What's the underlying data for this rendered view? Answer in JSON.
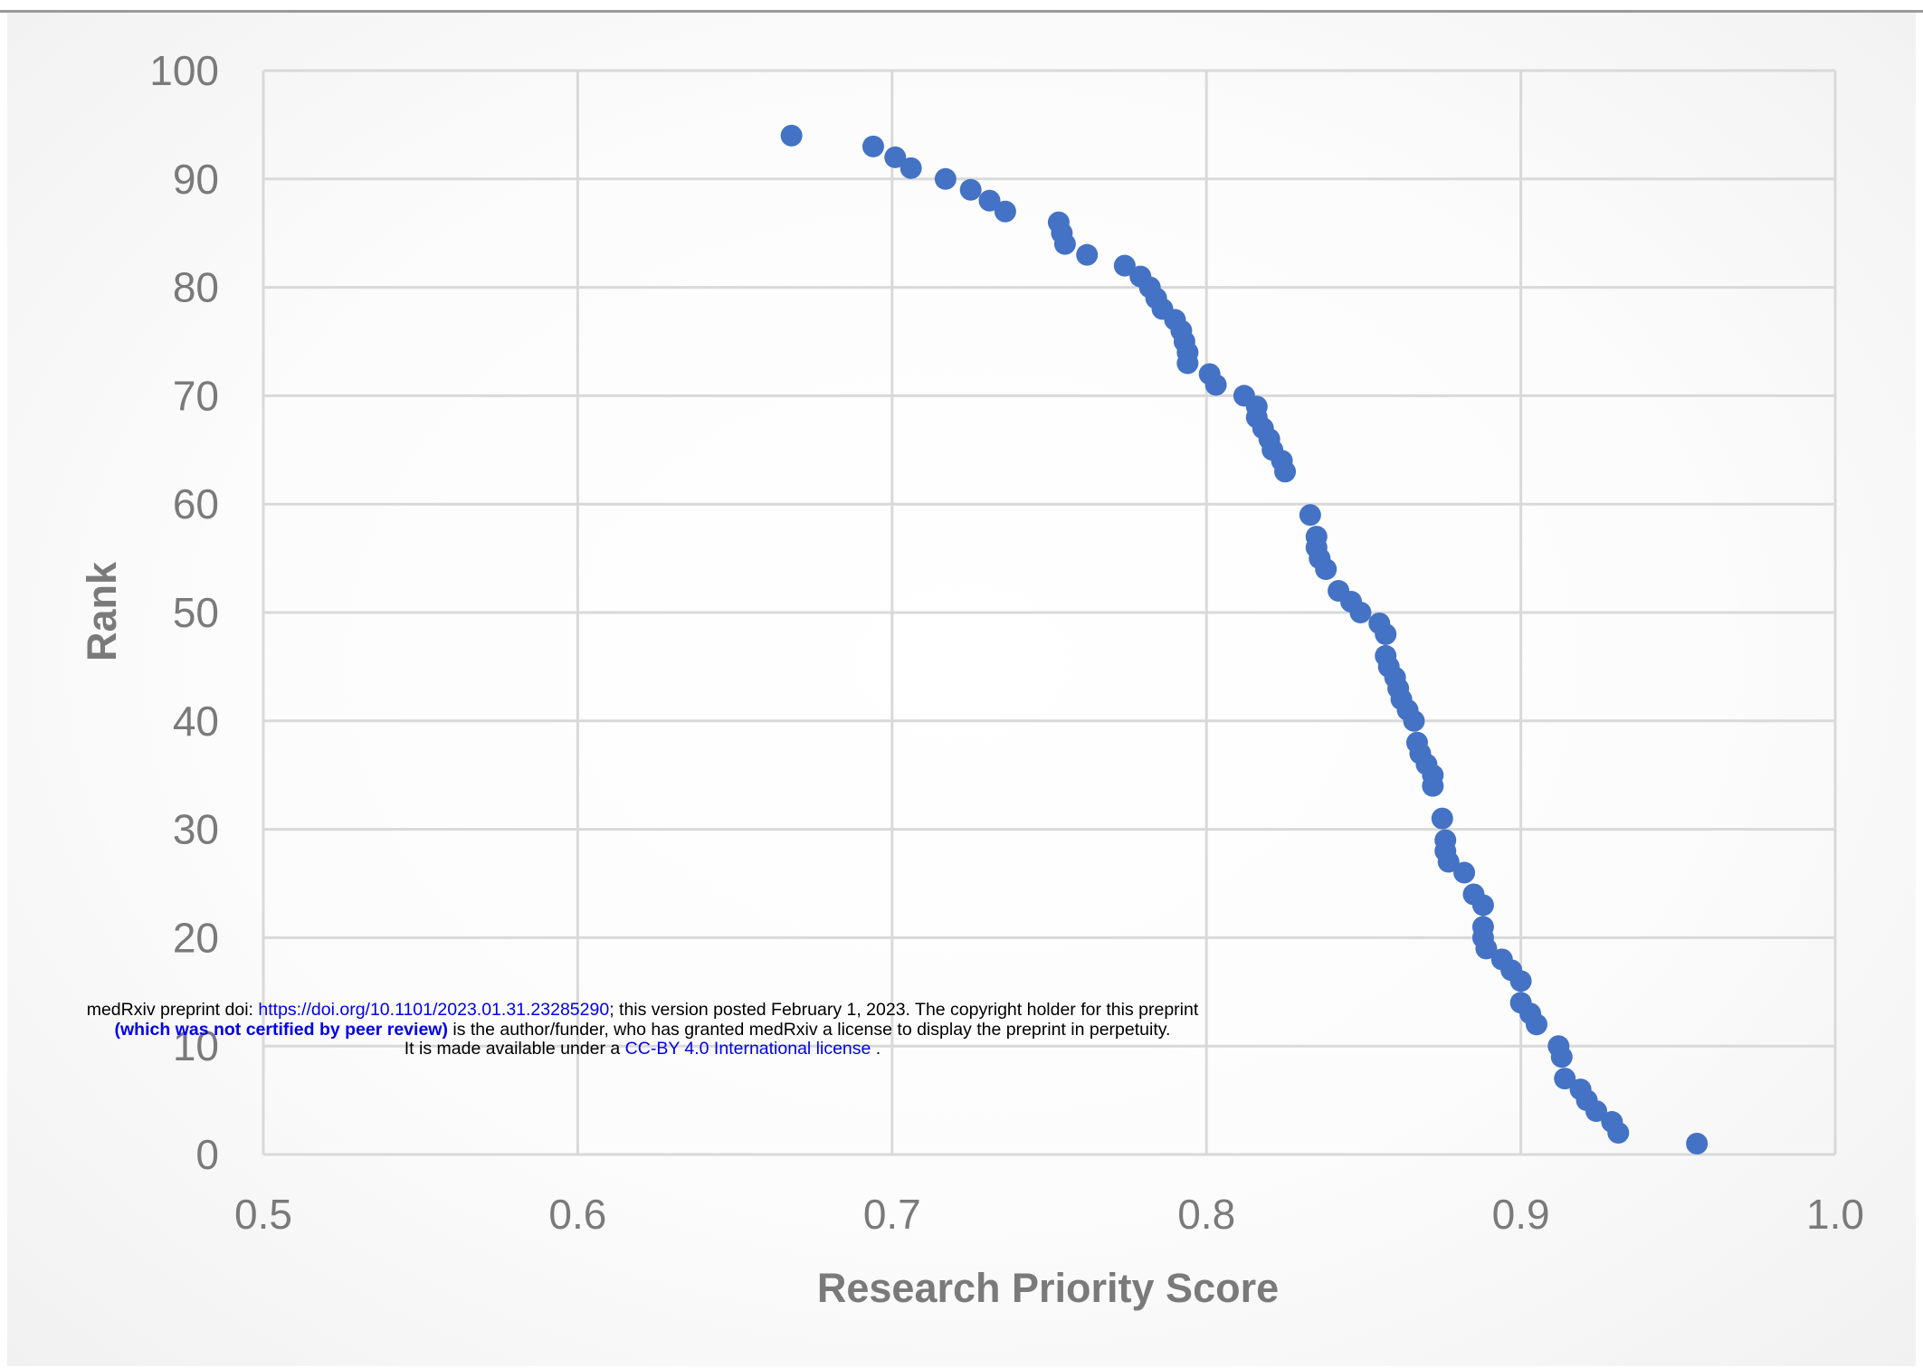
{
  "chart_data": {
    "type": "scatter",
    "title": "",
    "xlabel": "Research Priority Score",
    "ylabel": "Rank",
    "xlim": [
      0.5,
      1.0
    ],
    "ylim": [
      0,
      100
    ],
    "x_ticks": [
      "0.5",
      "0.6",
      "0.7",
      "0.8",
      "0.9",
      "1.0"
    ],
    "y_ticks": [
      "0",
      "10",
      "20",
      "30",
      "40",
      "50",
      "60",
      "70",
      "80",
      "90",
      "100"
    ],
    "grid": true,
    "legend": "none",
    "marker_color": "#4472c4",
    "points": [
      [
        0.668,
        94
      ],
      [
        0.694,
        93
      ],
      [
        0.701,
        92
      ],
      [
        0.706,
        91
      ],
      [
        0.717,
        90
      ],
      [
        0.725,
        89
      ],
      [
        0.731,
        88
      ],
      [
        0.736,
        87
      ],
      [
        0.753,
        86
      ],
      [
        0.754,
        85
      ],
      [
        0.755,
        84
      ],
      [
        0.762,
        83
      ],
      [
        0.774,
        82
      ],
      [
        0.779,
        81
      ],
      [
        0.782,
        80
      ],
      [
        0.784,
        79
      ],
      [
        0.786,
        78
      ],
      [
        0.79,
        77
      ],
      [
        0.792,
        76
      ],
      [
        0.793,
        75
      ],
      [
        0.794,
        74
      ],
      [
        0.794,
        73
      ],
      [
        0.801,
        72
      ],
      [
        0.803,
        71
      ],
      [
        0.812,
        70
      ],
      [
        0.816,
        69
      ],
      [
        0.816,
        68
      ],
      [
        0.818,
        67
      ],
      [
        0.82,
        66
      ],
      [
        0.821,
        65
      ],
      [
        0.824,
        64
      ],
      [
        0.825,
        63
      ],
      [
        0.833,
        59
      ],
      [
        0.835,
        57
      ],
      [
        0.835,
        56
      ],
      [
        0.836,
        55
      ],
      [
        0.838,
        54
      ],
      [
        0.842,
        52
      ],
      [
        0.846,
        51
      ],
      [
        0.849,
        50
      ],
      [
        0.855,
        49
      ],
      [
        0.857,
        48
      ],
      [
        0.857,
        46
      ],
      [
        0.858,
        45
      ],
      [
        0.86,
        44
      ],
      [
        0.861,
        43
      ],
      [
        0.862,
        42
      ],
      [
        0.864,
        41
      ],
      [
        0.866,
        40
      ],
      [
        0.867,
        38
      ],
      [
        0.868,
        37
      ],
      [
        0.87,
        36
      ],
      [
        0.872,
        35
      ],
      [
        0.872,
        34
      ],
      [
        0.875,
        31
      ],
      [
        0.876,
        29
      ],
      [
        0.876,
        28
      ],
      [
        0.877,
        27
      ],
      [
        0.882,
        26
      ],
      [
        0.885,
        24
      ],
      [
        0.888,
        23
      ],
      [
        0.888,
        21
      ],
      [
        0.888,
        20
      ],
      [
        0.889,
        19
      ],
      [
        0.894,
        18
      ],
      [
        0.897,
        17
      ],
      [
        0.9,
        16
      ],
      [
        0.9,
        14
      ],
      [
        0.903,
        13
      ],
      [
        0.905,
        12
      ],
      [
        0.912,
        10
      ],
      [
        0.913,
        9
      ],
      [
        0.914,
        7
      ],
      [
        0.919,
        6
      ],
      [
        0.921,
        5
      ],
      [
        0.924,
        4
      ],
      [
        0.929,
        3
      ],
      [
        0.931,
        2
      ],
      [
        0.956,
        1
      ]
    ]
  },
  "notice": {
    "prefix": "medRxiv preprint doi: ",
    "doi_link": "https://doi.org/10.1101/2023.01.31.23285290",
    "posted": "; this version posted February 1, 2023. The copyright holder for this preprint",
    "peer_review": "(which was not certified by peer review)",
    "holder": " is the author/funder, who has granted medRxiv a license to display the preprint in perpetuity.",
    "available_prefix": "It is made available under a ",
    "license_link": "CC-BY 4.0 International license",
    "available_suffix": " ."
  }
}
